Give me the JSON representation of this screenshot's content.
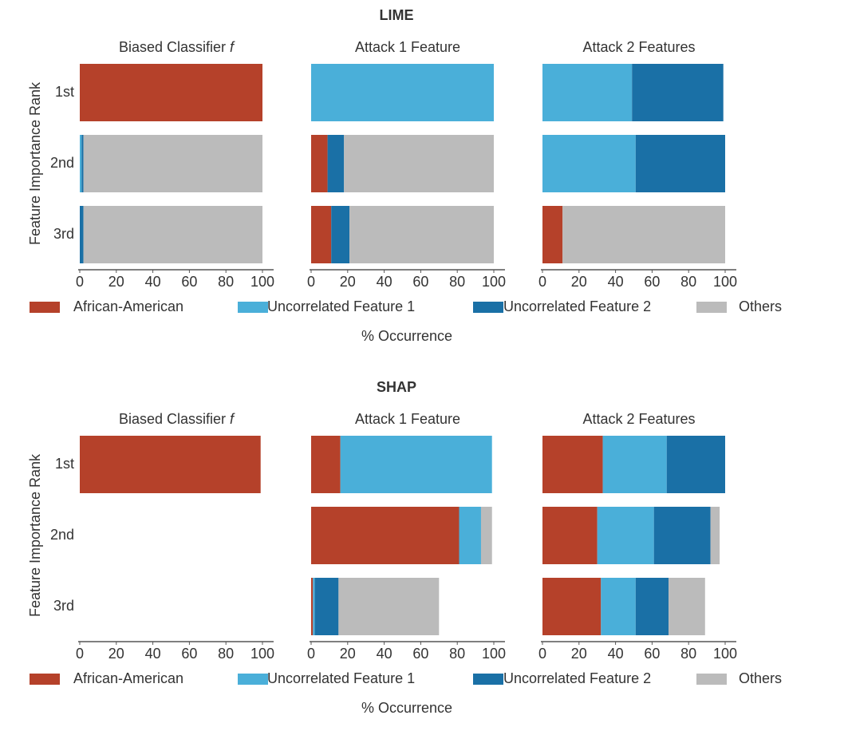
{
  "chart_data": [
    {
      "type": "bar",
      "orientation": "horizontal",
      "stacked": true,
      "title": "LIME",
      "ylabel": "Feature Importance Rank",
      "xlabel": "% Occurrence",
      "categories": [
        "1st",
        "2nd",
        "3rd"
      ],
      "series": [
        {
          "name": "African-American",
          "color": "#b5412a"
        },
        {
          "name": "Uncorrelated Feature 1",
          "color": "#4aafd9"
        },
        {
          "name": "Uncorrelated Feature 2",
          "color": "#1a70a6"
        },
        {
          "name": "Others",
          "color": "#bbbbbb"
        }
      ],
      "xlim": [
        0,
        100
      ],
      "xticks": [
        0,
        20,
        40,
        60,
        80,
        100
      ],
      "panels": [
        {
          "title": "Biased Classifier",
          "title_italic": "f",
          "values": [
            [
              100,
              0,
              0
            ],
            [
              0,
              1,
              0
            ],
            [
              0,
              1,
              2
            ],
            [
              0,
              98,
              98
            ]
          ]
        },
        {
          "title": "Attack 1 Feature",
          "values": [
            [
              0,
              9,
              11
            ],
            [
              100,
              0,
              0
            ],
            [
              0,
              9,
              10
            ],
            [
              0,
              82,
              79
            ]
          ]
        },
        {
          "title": "Attack 2 Features",
          "values": [
            [
              0,
              0,
              11
            ],
            [
              49,
              51,
              0
            ],
            [
              50,
              49,
              0
            ],
            [
              0,
              0,
              89
            ]
          ]
        }
      ]
    },
    {
      "type": "bar",
      "orientation": "horizontal",
      "stacked": true,
      "title": "SHAP",
      "ylabel": "Feature Importance Rank",
      "xlabel": "% Occurrence",
      "categories": [
        "1st",
        "2nd",
        "3rd"
      ],
      "series": [
        {
          "name": "African-American",
          "color": "#b5412a"
        },
        {
          "name": "Uncorrelated Feature 1",
          "color": "#4aafd9"
        },
        {
          "name": "Uncorrelated Feature 2",
          "color": "#1a70a6"
        },
        {
          "name": "Others",
          "color": "#bbbbbb"
        }
      ],
      "xlim": [
        0,
        100
      ],
      "xticks": [
        0,
        20,
        40,
        60,
        80,
        100
      ],
      "panels": [
        {
          "title": "Biased Classifier",
          "title_italic": "f",
          "values": [
            [
              99,
              0,
              0
            ],
            [
              0,
              0,
              0
            ],
            [
              0,
              0,
              0
            ],
            [
              0,
              0,
              0
            ]
          ]
        },
        {
          "title": "Attack 1 Feature",
          "values": [
            [
              16,
              81,
              1
            ],
            [
              83,
              12,
              1
            ],
            [
              0,
              0,
              13
            ],
            [
              0,
              6,
              55
            ]
          ]
        },
        {
          "title": "Attack 2 Features",
          "values": [
            [
              33,
              30,
              32
            ],
            [
              35,
              31,
              19
            ],
            [
              32,
              31,
              18
            ],
            [
              0,
              5,
              20
            ]
          ]
        }
      ]
    }
  ]
}
